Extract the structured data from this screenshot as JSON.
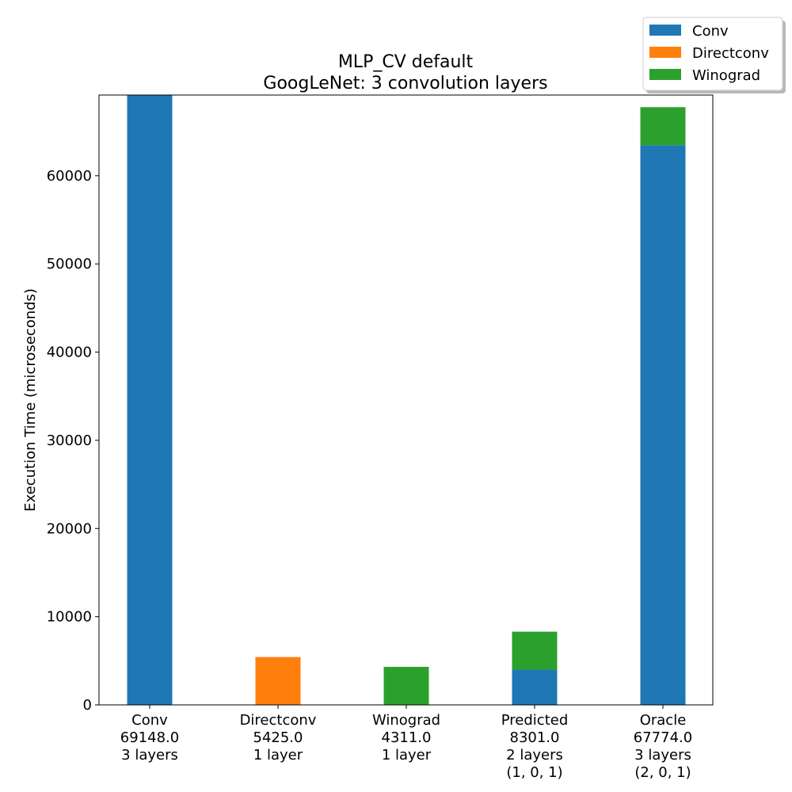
{
  "chart_data": {
    "type": "bar",
    "stacked": true,
    "title": "MLP_CV default",
    "subtitle": "GoogLeNet: 3 convolution layers",
    "ylabel": "Execution Time (microseconds)",
    "xlabel": "",
    "ylim": [
      0,
      69148
    ],
    "yticks": [
      0,
      10000,
      20000,
      30000,
      40000,
      50000,
      60000
    ],
    "categories": [
      "Conv",
      "Directconv",
      "Winograd",
      "Predicted",
      "Oracle"
    ],
    "category_labels": [
      [
        "Conv",
        "69148.0",
        "3 layers"
      ],
      [
        "Directconv",
        "5425.0",
        "1 layer"
      ],
      [
        "Winograd",
        "4311.0",
        "1 layer"
      ],
      [
        "Predicted",
        "8301.0",
        "2 layers",
        "(1, 0, 1)"
      ],
      [
        "Oracle",
        "67774.0",
        "3 layers",
        "(2, 0, 1)"
      ]
    ],
    "series": [
      {
        "name": "Conv",
        "color": "#1f77b4",
        "values": [
          69148,
          0,
          0,
          3990,
          63463
        ]
      },
      {
        "name": "Directconv",
        "color": "#ff7f0e",
        "values": [
          0,
          5425,
          0,
          0,
          0
        ]
      },
      {
        "name": "Winograd",
        "color": "#2ca02c",
        "values": [
          0,
          0,
          4311,
          4311,
          4311
        ]
      }
    ],
    "legend_position": "top-right",
    "grid": false
  }
}
